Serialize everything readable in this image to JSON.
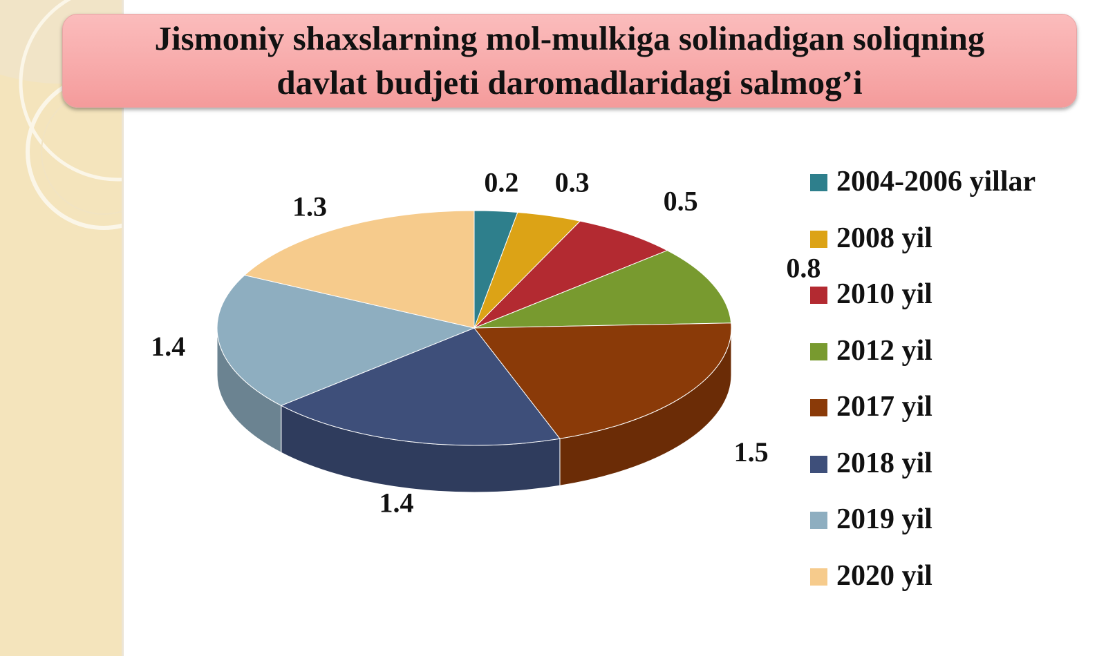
{
  "slide": {
    "title_line1": "Jismoniy shaxslarning mol-mulkiga solinadigan soliqning",
    "title_line2": "davlat budjeti daromadlaridagi salmog’i"
  },
  "chart_data": {
    "type": "pie",
    "title": "Jismoniy shaxslarning mol-mulkiga solinadigan soliqning davlat budjeti daromadlaridagi salmog’i",
    "three_d": true,
    "legend_position": "right",
    "categories": [
      "2004-2006 yillar",
      "2008 yil",
      "2010 yil",
      "2012 yil",
      "2017 yil",
      "2018 yil",
      "2019 yil",
      "2020 yil"
    ],
    "values": [
      0.2,
      0.3,
      0.5,
      0.8,
      1.5,
      1.4,
      1.4,
      1.3
    ],
    "value_labels": [
      "0.2",
      "0.3",
      "0.5",
      "0.8",
      "1.5",
      "1.4",
      "1.4",
      "1.3"
    ],
    "colors": [
      "#2e7f8c",
      "#dca316",
      "#b32a31",
      "#789a2f",
      "#8a3a08",
      "#3e4f7a",
      "#8eaec0",
      "#f6cb8c"
    ],
    "side_colors": [
      "#225f69",
      "#a67a10",
      "#861f25",
      "#5a7323",
      "#6b2c06",
      "#2f3c5d",
      "#6b8391",
      "#b89869"
    ]
  }
}
